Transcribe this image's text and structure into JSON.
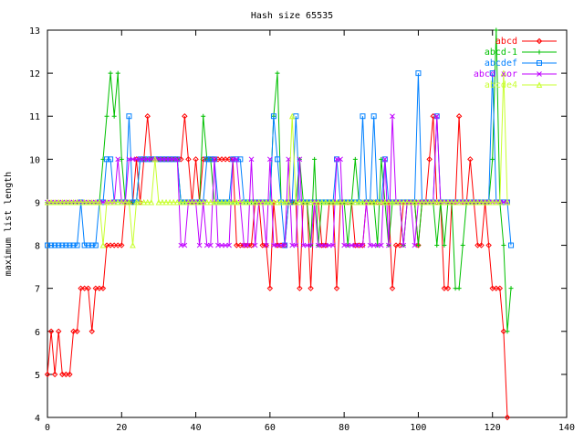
{
  "chart_data": {
    "type": "line",
    "title": "Hash size 65535",
    "xlabel": "",
    "ylabel": "maximum list length",
    "xlim": [
      0,
      140
    ],
    "ylim": [
      4,
      13
    ],
    "x_ticks": [
      0,
      20,
      40,
      60,
      80,
      100,
      120,
      140
    ],
    "y_ticks": [
      4,
      5,
      6,
      7,
      8,
      9,
      10,
      11,
      12,
      13
    ],
    "grid": false,
    "legend_position": "top-right",
    "series": [
      {
        "name": "abcd",
        "color": "#ff0000",
        "marker": "diamond",
        "x": [
          0,
          1,
          2,
          3,
          4,
          5,
          6,
          7,
          8,
          9,
          10,
          11,
          12,
          13,
          14,
          15,
          16,
          17,
          18,
          19,
          20,
          21,
          22,
          23,
          24,
          25,
          26,
          27,
          28,
          29,
          30,
          31,
          32,
          33,
          34,
          35,
          36,
          37,
          38,
          39,
          40,
          41,
          42,
          43,
          44,
          45,
          46,
          47,
          48,
          49,
          50,
          51,
          52,
          53,
          54,
          55,
          56,
          57,
          58,
          59,
          60,
          61,
          62,
          63,
          64,
          65,
          66,
          67,
          68,
          69,
          70,
          71,
          72,
          73,
          74,
          75,
          76,
          77,
          78,
          79,
          80,
          81,
          82,
          83,
          84,
          85,
          86,
          87,
          88,
          89,
          90,
          91,
          92,
          93,
          94,
          95,
          96,
          97,
          98,
          99,
          100,
          101,
          102,
          103,
          104,
          105,
          106,
          107,
          108,
          109,
          110,
          111,
          112,
          113,
          114,
          115,
          116,
          117,
          118,
          119,
          120,
          121,
          122,
          123,
          124
        ],
        "y": [
          5,
          6,
          5,
          6,
          5,
          5,
          5,
          6,
          6,
          7,
          7,
          7,
          6,
          7,
          7,
          7,
          8,
          8,
          8,
          8,
          8,
          9,
          9,
          9,
          10,
          9,
          10,
          11,
          10,
          10,
          10,
          10,
          10,
          10,
          10,
          10,
          10,
          11,
          10,
          9,
          10,
          9,
          10,
          10,
          10,
          10,
          10,
          10,
          10,
          10,
          10,
          8,
          8,
          8,
          8,
          8,
          9,
          9,
          8,
          8,
          7,
          9,
          8,
          8,
          8,
          9,
          9,
          9,
          7,
          9,
          9,
          7,
          9,
          9,
          8,
          8,
          9,
          9,
          7,
          9,
          9,
          9,
          9,
          8,
          8,
          8,
          9,
          9,
          9,
          9,
          9,
          9,
          9,
          7,
          8,
          8,
          9,
          9,
          9,
          9,
          8,
          9,
          9,
          10,
          11,
          9,
          9,
          7,
          7,
          9,
          9,
          11,
          9,
          9,
          10,
          9,
          8,
          8,
          9,
          8,
          7,
          7,
          7,
          6,
          4
        ]
      },
      {
        "name": "abcd-1",
        "color": "#00c000",
        "marker": "plus",
        "x": [
          0,
          1,
          2,
          3,
          4,
          5,
          6,
          7,
          8,
          9,
          10,
          11,
          12,
          13,
          14,
          15,
          16,
          17,
          18,
          19,
          20,
          21,
          22,
          23,
          24,
          25,
          26,
          27,
          28,
          29,
          30,
          31,
          32,
          33,
          34,
          35,
          36,
          37,
          38,
          39,
          40,
          41,
          42,
          43,
          44,
          45,
          46,
          47,
          48,
          49,
          50,
          51,
          52,
          53,
          54,
          55,
          56,
          57,
          58,
          59,
          60,
          61,
          62,
          63,
          64,
          65,
          66,
          67,
          68,
          69,
          70,
          71,
          72,
          73,
          74,
          75,
          76,
          77,
          78,
          79,
          80,
          81,
          82,
          83,
          84,
          85,
          86,
          87,
          88,
          89,
          90,
          91,
          92,
          93,
          94,
          95,
          96,
          97,
          98,
          99,
          100,
          101,
          102,
          103,
          104,
          105,
          106,
          107,
          108,
          109,
          110,
          111,
          112,
          113,
          114,
          115,
          116,
          117,
          118,
          119,
          120,
          121,
          122,
          123,
          124,
          125
        ],
        "y": [
          9,
          9,
          9,
          9,
          9,
          9,
          9,
          9,
          9,
          9,
          9,
          9,
          9,
          9,
          9,
          10,
          11,
          12,
          11,
          12,
          10,
          9,
          9,
          9,
          9,
          10,
          10,
          10,
          10,
          10,
          10,
          10,
          10,
          10,
          10,
          10,
          9,
          9,
          9,
          9,
          9,
          9,
          11,
          10,
          10,
          9,
          9,
          9,
          9,
          9,
          9,
          9,
          9,
          9,
          9,
          9,
          9,
          9,
          9,
          9,
          9,
          11,
          12,
          9,
          9,
          9,
          9,
          9,
          10,
          9,
          9,
          8,
          10,
          8,
          9,
          9,
          9,
          9,
          9,
          9,
          9,
          8,
          9,
          10,
          9,
          9,
          9,
          9,
          9,
          8,
          10,
          9,
          8,
          9,
          9,
          9,
          8,
          9,
          9,
          9,
          8,
          9,
          9,
          9,
          9,
          8,
          9,
          8,
          9,
          9,
          7,
          7,
          8,
          9,
          9,
          9,
          9,
          9,
          9,
          9,
          10,
          13,
          9,
          8,
          6,
          7
        ]
      },
      {
        "name": "abcdef",
        "color": "#0080ff",
        "marker": "square",
        "x": [
          0,
          1,
          2,
          3,
          4,
          5,
          6,
          7,
          8,
          9,
          10,
          11,
          12,
          13,
          14,
          15,
          16,
          17,
          18,
          19,
          20,
          21,
          22,
          23,
          24,
          25,
          26,
          27,
          28,
          29,
          30,
          31,
          32,
          33,
          34,
          35,
          36,
          37,
          38,
          39,
          40,
          41,
          42,
          43,
          44,
          45,
          46,
          47,
          48,
          49,
          50,
          51,
          52,
          53,
          54,
          55,
          56,
          57,
          58,
          59,
          60,
          61,
          62,
          63,
          64,
          65,
          66,
          67,
          68,
          69,
          70,
          71,
          72,
          73,
          74,
          75,
          76,
          77,
          78,
          79,
          80,
          81,
          82,
          83,
          84,
          85,
          86,
          87,
          88,
          89,
          90,
          91,
          92,
          93,
          94,
          95,
          96,
          97,
          98,
          99,
          100,
          101,
          102,
          103,
          104,
          105,
          106,
          107,
          108,
          109,
          110,
          111,
          112,
          113,
          114,
          115,
          116,
          117,
          118,
          119,
          120,
          121,
          122,
          123,
          124,
          125
        ],
        "y": [
          8,
          8,
          8,
          8,
          8,
          8,
          8,
          8,
          8,
          9,
          8,
          8,
          8,
          8,
          9,
          9,
          10,
          10,
          9,
          9,
          9,
          9,
          11,
          9,
          9,
          10,
          10,
          10,
          10,
          10,
          10,
          10,
          10,
          10,
          10,
          10,
          9,
          9,
          9,
          9,
          9,
          9,
          9,
          10,
          10,
          10,
          9,
          9,
          9,
          9,
          10,
          10,
          10,
          9,
          9,
          9,
          9,
          9,
          9,
          9,
          9,
          11,
          10,
          9,
          8,
          9,
          9,
          11,
          9,
          9,
          9,
          9,
          9,
          9,
          9,
          9,
          9,
          9,
          10,
          9,
          9,
          9,
          9,
          9,
          9,
          11,
          9,
          9,
          11,
          9,
          9,
          10,
          9,
          9,
          9,
          9,
          9,
          9,
          9,
          9,
          12,
          9,
          9,
          9,
          9,
          11,
          9,
          9,
          9,
          9,
          9,
          9,
          9,
          9,
          9,
          9,
          9,
          9,
          9,
          9,
          12,
          9,
          9,
          9,
          9,
          8
        ]
      },
      {
        "name": "abcd xor",
        "color": "#c000ff",
        "marker": "cross",
        "x": [
          0,
          1,
          2,
          3,
          4,
          5,
          6,
          7,
          8,
          9,
          10,
          11,
          12,
          13,
          14,
          15,
          16,
          17,
          18,
          19,
          20,
          21,
          22,
          23,
          24,
          25,
          26,
          27,
          28,
          29,
          30,
          31,
          32,
          33,
          34,
          35,
          36,
          37,
          38,
          39,
          40,
          41,
          42,
          43,
          44,
          45,
          46,
          47,
          48,
          49,
          50,
          51,
          52,
          53,
          54,
          55,
          56,
          57,
          58,
          59,
          60,
          61,
          62,
          63,
          64,
          65,
          66,
          67,
          68,
          69,
          70,
          71,
          72,
          73,
          74,
          75,
          76,
          77,
          78,
          79,
          80,
          81,
          82,
          83,
          84,
          85,
          86,
          87,
          88,
          89,
          90,
          91,
          92,
          93,
          94,
          95,
          96,
          97,
          98,
          99,
          100,
          101,
          102,
          103,
          104,
          105,
          106,
          107,
          108,
          109,
          110,
          111,
          112,
          113,
          114,
          115,
          116,
          117,
          118,
          119,
          120,
          121,
          122,
          123,
          124
        ],
        "y": [
          9,
          9,
          9,
          9,
          9,
          9,
          9,
          9,
          9,
          9,
          9,
          9,
          9,
          9,
          9,
          9,
          9,
          9,
          9,
          10,
          9,
          9,
          10,
          10,
          10,
          10,
          10,
          10,
          10,
          10,
          10,
          10,
          10,
          10,
          10,
          10,
          8,
          8,
          9,
          9,
          9,
          8,
          9,
          8,
          8,
          10,
          8,
          8,
          8,
          8,
          10,
          10,
          9,
          8,
          8,
          10,
          8,
          9,
          9,
          8,
          10,
          8,
          8,
          8,
          8,
          10,
          8,
          8,
          10,
          8,
          8,
          8,
          9,
          8,
          8,
          8,
          8,
          8,
          10,
          10,
          8,
          8,
          8,
          8,
          8,
          8,
          9,
          8,
          8,
          8,
          8,
          10,
          8,
          11,
          9,
          9,
          8,
          9,
          9,
          8,
          9,
          9,
          9,
          9,
          9,
          11,
          9,
          9,
          9,
          9,
          9,
          9,
          9,
          9,
          9,
          9,
          9,
          9,
          9,
          9,
          9,
          9,
          9,
          9,
          9
        ]
      },
      {
        "name": "abcde4",
        "color": "#c8ff30",
        "marker": "triangle",
        "x": [
          0,
          1,
          2,
          3,
          4,
          5,
          6,
          7,
          8,
          9,
          10,
          11,
          12,
          13,
          14,
          15,
          16,
          17,
          18,
          19,
          20,
          21,
          22,
          23,
          24,
          25,
          26,
          27,
          28,
          29,
          30,
          31,
          32,
          33,
          34,
          35,
          36,
          37,
          38,
          39,
          40,
          41,
          42,
          43,
          44,
          45,
          46,
          47,
          48,
          49,
          50,
          51,
          52,
          53,
          54,
          55,
          56,
          57,
          58,
          59,
          60,
          61,
          62,
          63,
          64,
          65,
          66,
          67,
          68,
          69,
          70,
          71,
          72,
          73,
          74,
          75,
          76,
          77,
          78,
          79,
          80,
          81,
          82,
          83,
          84,
          85,
          86,
          87,
          88,
          89,
          90,
          91,
          92,
          93,
          94,
          95,
          96,
          97,
          98,
          99,
          100,
          101,
          102,
          103,
          104,
          105,
          106,
          107,
          108,
          109,
          110,
          111,
          112,
          113,
          114,
          115,
          116,
          117,
          118,
          119,
          120,
          121,
          122,
          123,
          124
        ],
        "y": [
          9,
          9,
          9,
          9,
          9,
          9,
          9,
          9,
          9,
          9,
          9,
          9,
          9,
          9,
          9,
          8,
          9,
          9,
          9,
          9,
          9,
          9,
          9,
          8,
          9,
          9,
          9,
          9,
          9,
          10,
          9,
          9,
          9,
          9,
          9,
          9,
          9,
          9,
          9,
          9,
          9,
          9,
          9,
          9,
          9,
          9,
          9,
          9,
          9,
          9,
          9,
          9,
          9,
          9,
          9,
          9,
          9,
          9,
          9,
          9,
          9,
          9,
          9,
          9,
          9,
          9,
          11,
          9,
          9,
          9,
          9,
          9,
          9,
          9,
          9,
          9,
          9,
          9,
          9,
          9,
          9,
          9,
          9,
          9,
          9,
          9,
          9,
          9,
          9,
          9,
          9,
          9,
          9,
          9,
          9,
          9,
          9,
          9,
          9,
          9,
          9,
          9,
          9,
          9,
          9,
          9,
          9,
          9,
          9,
          9,
          9,
          9,
          9,
          9,
          9,
          9,
          9,
          9,
          9,
          9,
          9,
          9,
          9,
          12,
          9
        ]
      }
    ]
  }
}
